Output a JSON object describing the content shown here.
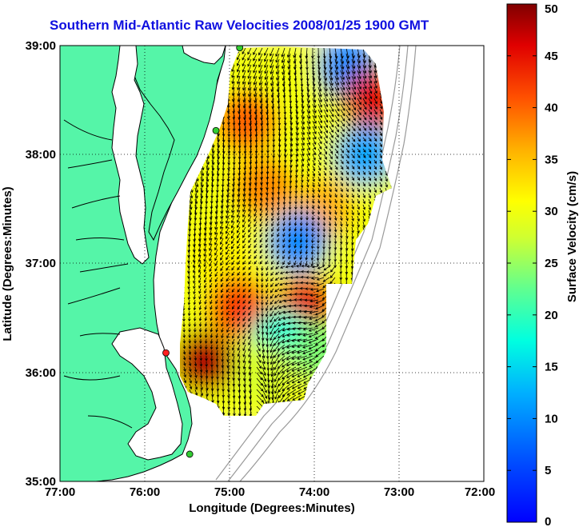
{
  "title": "Southern Mid-Atlantic Raw Velocities 2008/01/25 1900 GMT",
  "x_axis": {
    "label": "Longitude (Degrees:Minutes)",
    "ticks": [
      "77:00",
      "76:00",
      "75:00",
      "74:00",
      "73:00",
      "72:00"
    ]
  },
  "y_axis": {
    "label": "Latitude (Degrees:Minutes)",
    "ticks": [
      "39:00",
      "38:00",
      "37:00",
      "36:00",
      "35:00"
    ]
  },
  "colorbar": {
    "label": "Surface Velocity (cm/s)",
    "ticks": [
      "0",
      "5",
      "10",
      "15",
      "20",
      "25",
      "30",
      "35",
      "40",
      "45",
      "50"
    ],
    "colormap": "jet",
    "range": [
      0,
      50
    ]
  },
  "colors": {
    "land": "#55f5a8",
    "ocean": "#ffffff",
    "title": "#1010e0",
    "coastline": "#000000",
    "bathymetry": "#9a9a9a",
    "grid": "#000000"
  },
  "map_data": {
    "lon_range": [
      -77,
      -72
    ],
    "lat_range": [
      35,
      39
    ],
    "grid": "dotted",
    "stations": [
      {
        "lon": -74.88,
        "lat": 38.98,
        "color": "#33cc33"
      },
      {
        "lon": -75.16,
        "lat": 38.22,
        "color": "#33cc33"
      },
      {
        "lon": -75.75,
        "lat": 36.18,
        "color": "#ff2020"
      },
      {
        "lon": -75.47,
        "lat": 35.25,
        "color": "#33cc33"
      }
    ],
    "speed_field_samples": [
      {
        "lon": -74.8,
        "lat": 38.3,
        "speed": 40
      },
      {
        "lon": -74.2,
        "lat": 38.7,
        "speed": 30
      },
      {
        "lon": -73.6,
        "lat": 38.8,
        "speed": 10
      },
      {
        "lon": -73.3,
        "lat": 38.5,
        "speed": 45
      },
      {
        "lon": -73.4,
        "lat": 38.0,
        "speed": 12
      },
      {
        "lon": -74.6,
        "lat": 37.7,
        "speed": 38
      },
      {
        "lon": -73.9,
        "lat": 37.5,
        "speed": 36
      },
      {
        "lon": -74.2,
        "lat": 37.2,
        "speed": 10
      },
      {
        "lon": -75.1,
        "lat": 37.1,
        "speed": 32
      },
      {
        "lon": -74.9,
        "lat": 36.6,
        "speed": 42
      },
      {
        "lon": -74.1,
        "lat": 36.6,
        "speed": 45
      },
      {
        "lon": -74.4,
        "lat": 36.3,
        "speed": 18
      },
      {
        "lon": -75.3,
        "lat": 36.1,
        "speed": 48
      },
      {
        "lon": -74.6,
        "lat": 36.0,
        "speed": 28
      },
      {
        "lon": -73.9,
        "lat": 36.2,
        "speed": 24
      }
    ]
  }
}
